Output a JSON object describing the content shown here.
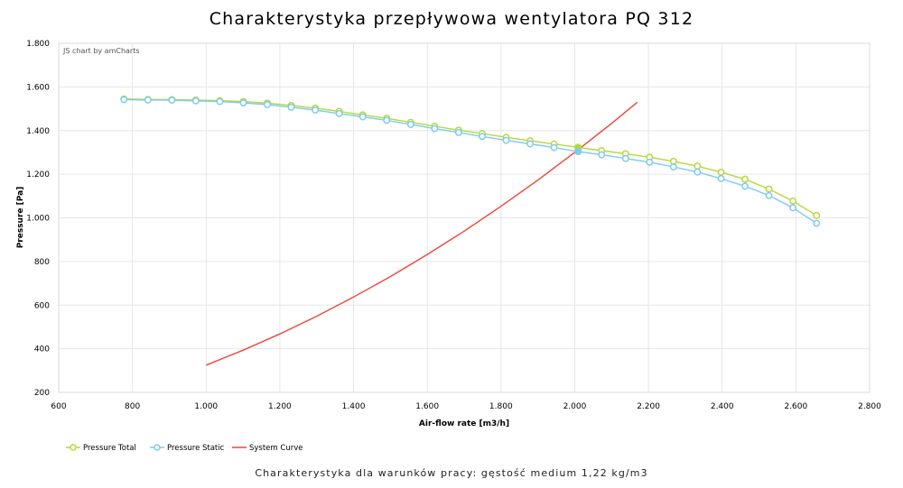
{
  "chart_data": {
    "type": "line",
    "title": "Charakterystyka przepływowa wentylatora PQ 312",
    "caption": "Charakterystyka dla warunków pracy: gęstość medium 1,22 kg/m3",
    "credit": "JS chart by amCharts",
    "xlabel": "Air-flow rate [m3/h]",
    "ylabel": "Pressure [Pa]",
    "xlim": [
      600,
      2800
    ],
    "ylim": [
      200,
      1800
    ],
    "x_ticks": [
      {
        "value": 600,
        "label": "600"
      },
      {
        "value": 800,
        "label": "800"
      },
      {
        "value": 1000,
        "label": "1.000"
      },
      {
        "value": 1200,
        "label": "1.200"
      },
      {
        "value": 1400,
        "label": "1.400"
      },
      {
        "value": 1600,
        "label": "1.600"
      },
      {
        "value": 1800,
        "label": "1.800"
      },
      {
        "value": 2000,
        "label": "2.000"
      },
      {
        "value": 2200,
        "label": "2.200"
      },
      {
        "value": 2400,
        "label": "2.400"
      },
      {
        "value": 2600,
        "label": "2.600"
      },
      {
        "value": 2800,
        "label": "2.800"
      }
    ],
    "y_ticks": [
      {
        "value": 200,
        "label": "200"
      },
      {
        "value": 400,
        "label": "400"
      },
      {
        "value": 600,
        "label": "600"
      },
      {
        "value": 800,
        "label": "800"
      },
      {
        "value": 1000,
        "label": "1.000"
      },
      {
        "value": 1200,
        "label": "1.200"
      },
      {
        "value": 1400,
        "label": "1.400"
      },
      {
        "value": 1600,
        "label": "1.600"
      },
      {
        "value": 1800,
        "label": "1.800"
      }
    ],
    "grid": true,
    "legend_position": "bottom-left",
    "series": [
      {
        "name": "Pressure Total",
        "color": "#b5d93c",
        "marker": "circle",
        "x": [
          777,
          842,
          907,
          972,
          1037,
          1101,
          1166,
          1231,
          1296,
          1361,
          1425,
          1490,
          1555,
          1620,
          1685,
          1749,
          1814,
          1879,
          1944,
          2009,
          2073,
          2138,
          2203,
          2268,
          2333,
          2397,
          2462,
          2527,
          2592,
          2656
        ],
        "y": [
          1545,
          1543,
          1542,
          1540,
          1537,
          1533,
          1526,
          1515,
          1503,
          1488,
          1472,
          1456,
          1438,
          1420,
          1402,
          1386,
          1369,
          1353,
          1338,
          1323,
          1308,
          1294,
          1278,
          1259,
          1237,
          1209,
          1177,
          1132,
          1077,
          1011
        ]
      },
      {
        "name": "Pressure Static",
        "color": "#7ecbf0",
        "marker": "circle",
        "x": [
          777,
          842,
          907,
          972,
          1037,
          1101,
          1166,
          1231,
          1296,
          1361,
          1425,
          1490,
          1555,
          1620,
          1685,
          1749,
          1814,
          1879,
          1944,
          2009,
          2073,
          2138,
          2203,
          2268,
          2333,
          2397,
          2462,
          2527,
          2592,
          2656
        ],
        "y": [
          1542,
          1540,
          1539,
          1536,
          1533,
          1527,
          1519,
          1507,
          1494,
          1478,
          1463,
          1447,
          1428,
          1409,
          1391,
          1373,
          1355,
          1339,
          1322,
          1304,
          1289,
          1272,
          1255,
          1233,
          1210,
          1180,
          1145,
          1102,
          1046,
          975
        ]
      },
      {
        "name": "System Curve",
        "color": "#f04538",
        "marker": "none",
        "x": [
          1000,
          1100,
          1200,
          1300,
          1400,
          1500,
          1600,
          1700,
          1800,
          1900,
          2000,
          2100,
          2170
        ],
        "y": [
          325,
          393,
          468,
          549,
          637,
          731,
          832,
          939,
          1053,
          1173,
          1300,
          1433,
          1530
        ]
      }
    ]
  }
}
